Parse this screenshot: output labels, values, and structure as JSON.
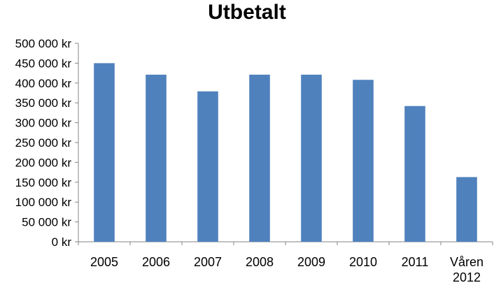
{
  "chart_data": {
    "type": "bar",
    "title": "Utbetalt",
    "xlabel": "",
    "ylabel": "",
    "categories": [
      "2005",
      "2006",
      "2007",
      "2008",
      "2009",
      "2010",
      "2011",
      "Våren 2012"
    ],
    "category_lines": [
      [
        "2005"
      ],
      [
        "2006"
      ],
      [
        "2007"
      ],
      [
        "2008"
      ],
      [
        "2009"
      ],
      [
        "2010"
      ],
      [
        "2011"
      ],
      [
        "Våren",
        "2012"
      ]
    ],
    "values": [
      450000,
      421000,
      379000,
      421000,
      421000,
      408000,
      342000,
      163000
    ],
    "ylim": [
      0,
      500000
    ],
    "y_ticks": [
      0,
      50000,
      100000,
      150000,
      200000,
      250000,
      300000,
      350000,
      400000,
      450000,
      500000
    ],
    "y_tick_labels": [
      "0 kr",
      "50 000 kr",
      "100 000 kr",
      "150 000 kr",
      "200 000 kr",
      "250 000 kr",
      "300 000 kr",
      "350 000 kr",
      "400 000 kr",
      "450 000 kr",
      "500 000 kr"
    ],
    "grid": false,
    "legend": "none",
    "colors": {
      "bar": "#4f81bd",
      "axis": "#868686",
      "text": "#000000"
    }
  }
}
